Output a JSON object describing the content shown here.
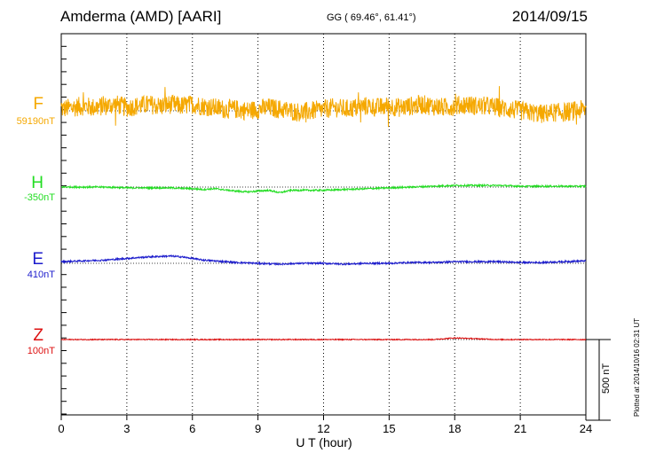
{
  "header": {
    "title": "Amderma (AMD)  [AARI]",
    "coords": "GG ( 69.46°,  61.41°)",
    "date": "2014/09/15"
  },
  "scale_label": "500 nT",
  "plotted_note": "Plotted at 2014/10/16 02:31  UT",
  "chart_data": {
    "type": "line",
    "xlabel": "U T (hour)",
    "xlim": [
      0,
      24
    ],
    "x_ticks": [
      0,
      3,
      6,
      9,
      12,
      15,
      18,
      21,
      24
    ],
    "scale_bar_nT": 500,
    "grid": "vertical dotted lines every 3 hours",
    "components": [
      {
        "name": "F",
        "baseline_label": "59190nT",
        "color": "#f5a800",
        "baseline_nT": 59190,
        "hours": [
          0,
          0.5,
          1,
          1.5,
          2,
          2.5,
          3,
          3.5,
          4,
          4.5,
          5,
          5.5,
          6,
          6.5,
          7,
          7.5,
          8,
          8.5,
          9,
          9.5,
          10,
          10.5,
          11,
          11.5,
          12,
          12.5,
          13,
          13.5,
          14,
          14.5,
          15,
          15.5,
          16,
          16.5,
          17,
          17.5,
          18,
          18.5,
          19,
          19.5,
          20,
          20.5,
          21,
          21.5,
          22,
          22.5,
          23,
          23.5,
          24
        ],
        "offset_nT": [
          10,
          20,
          30,
          20,
          30,
          40,
          20,
          30,
          40,
          30,
          40,
          30,
          40,
          30,
          20,
          10,
          10,
          0,
          10,
          20,
          10,
          0,
          -10,
          0,
          10,
          20,
          10,
          20,
          30,
          20,
          30,
          20,
          30,
          40,
          30,
          20,
          30,
          40,
          30,
          30,
          20,
          10,
          0,
          -10,
          -20,
          -10,
          -10,
          0,
          10
        ],
        "noise_amplitude_nT": 60
      },
      {
        "name": "H",
        "baseline_label": "-350nT",
        "color": "#22dd22",
        "baseline_nT": -350,
        "hours": [
          0,
          1,
          2,
          3,
          4,
          5,
          6,
          6.5,
          7,
          8,
          8.5,
          9,
          9.5,
          10,
          10.5,
          11,
          12,
          13,
          14,
          15,
          16,
          17,
          18,
          19,
          20,
          21,
          22,
          23,
          24
        ],
        "offset_nT": [
          0,
          0,
          0,
          -5,
          -5,
          -5,
          -10,
          -15,
          -10,
          -25,
          -30,
          -25,
          -20,
          -35,
          -20,
          -20,
          -20,
          -15,
          -10,
          -5,
          0,
          5,
          10,
          10,
          10,
          5,
          5,
          5,
          5
        ],
        "noise_amplitude_nT": 5
      },
      {
        "name": "E",
        "baseline_label": "410nT",
        "color": "#1c1ccc",
        "baseline_nT": 410,
        "hours": [
          0,
          1,
          2,
          3,
          4,
          5,
          5.5,
          6,
          6.5,
          7,
          8,
          9,
          10,
          11,
          12,
          13,
          14,
          15,
          16,
          17,
          18,
          19,
          20,
          21,
          22,
          23,
          24
        ],
        "offset_nT": [
          10,
          15,
          20,
          30,
          40,
          45,
          40,
          30,
          20,
          15,
          5,
          0,
          -5,
          0,
          0,
          -5,
          0,
          0,
          5,
          5,
          10,
          10,
          10,
          5,
          5,
          10,
          15
        ],
        "noise_amplitude_nT": 5
      },
      {
        "name": "Z",
        "baseline_label": "100nT",
        "color": "#dd1111",
        "baseline_nT": 100,
        "hours": [
          0,
          2,
          4,
          6,
          8,
          10,
          12,
          14,
          16,
          17,
          18,
          19,
          20,
          22,
          24
        ],
        "offset_nT": [
          0,
          0,
          0,
          0,
          0,
          0,
          0,
          0,
          0,
          0,
          10,
          5,
          0,
          0,
          0
        ],
        "noise_amplitude_nT": 3
      }
    ]
  }
}
